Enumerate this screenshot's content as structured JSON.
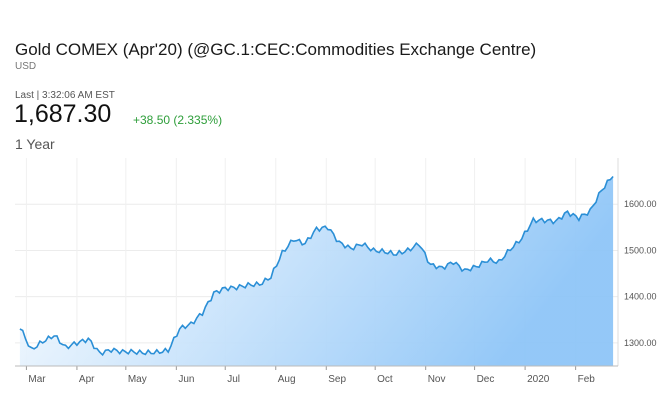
{
  "quote": {
    "title": "Gold COMEX (Apr'20) (@GC.1:CEC:Commodities Exchange Centre)",
    "currency": "USD",
    "last_label": "Last | 3:32:06 AM EST",
    "price": "1,687.30",
    "change": "+38.50 (2.335%)",
    "period": "1 Year"
  },
  "colors": {
    "line": "#2b8fd6",
    "fill_top": "#8ec5f7",
    "positive": "#2e9e3a"
  },
  "chart_data": {
    "type": "area",
    "title": "",
    "xlabel": "",
    "ylabel": "",
    "ylim": [
      1250,
      1700
    ],
    "yticks": [
      "1300.00",
      "1400.00",
      "1500.00",
      "1600.00"
    ],
    "x_tick_labels": [
      "Mar",
      "Apr",
      "May",
      "Jun",
      "Jul",
      "Aug",
      "Sep",
      "Oct",
      "Nov",
      "Dec",
      "2020",
      "Feb"
    ],
    "grid": true,
    "series": [
      {
        "x": [
          "2019-02-25",
          "2019-03-04",
          "2019-03-11",
          "2019-03-18",
          "2019-03-25",
          "2019-04-01",
          "2019-04-08",
          "2019-04-15",
          "2019-04-22",
          "2019-04-29",
          "2019-05-06",
          "2019-05-13",
          "2019-05-20",
          "2019-05-27",
          "2019-06-03",
          "2019-06-10",
          "2019-06-17",
          "2019-06-24",
          "2019-07-01",
          "2019-07-08",
          "2019-07-15",
          "2019-07-22",
          "2019-07-29",
          "2019-08-05",
          "2019-08-12",
          "2019-08-19",
          "2019-08-26",
          "2019-09-02",
          "2019-09-09",
          "2019-09-16",
          "2019-09-23",
          "2019-09-30",
          "2019-10-07",
          "2019-10-14",
          "2019-10-21",
          "2019-10-28",
          "2019-11-04",
          "2019-11-11",
          "2019-11-18",
          "2019-11-25",
          "2019-12-02",
          "2019-12-09",
          "2019-12-16",
          "2019-12-23",
          "2019-12-30",
          "2020-01-06",
          "2020-01-13",
          "2020-01-20",
          "2020-01-27",
          "2020-02-03",
          "2020-02-10",
          "2020-02-17",
          "2020-02-24"
        ],
        "values": [
          1330,
          1290,
          1300,
          1315,
          1295,
          1295,
          1310,
          1280,
          1280,
          1285,
          1280,
          1275,
          1285,
          1280,
          1330,
          1345,
          1360,
          1410,
          1420,
          1415,
          1430,
          1425,
          1440,
          1500,
          1520,
          1515,
          1550,
          1545,
          1520,
          1505,
          1510,
          1505,
          1495,
          1490,
          1505,
          1510,
          1470,
          1465,
          1470,
          1460,
          1465,
          1475,
          1480,
          1500,
          1525,
          1570,
          1560,
          1565,
          1585,
          1565,
          1590,
          1630,
          1660
        ]
      }
    ]
  }
}
